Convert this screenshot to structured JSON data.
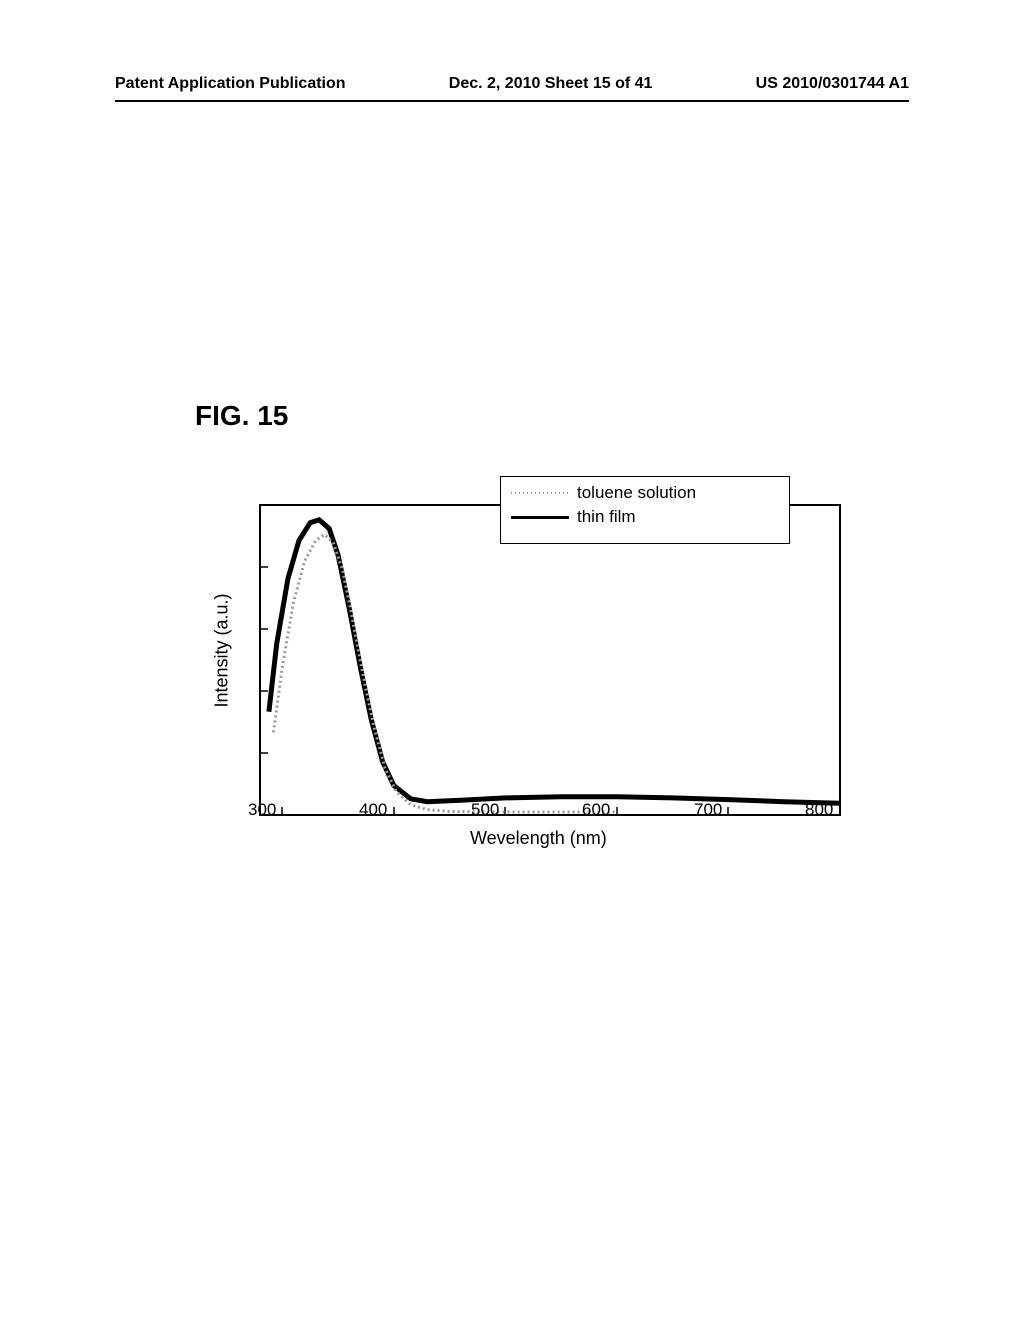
{
  "header": {
    "left": "Patent Application Publication",
    "center": "Dec. 2, 2010  Sheet 15 of 41",
    "right": "US 2010/0301744 A1"
  },
  "figure": {
    "label": "FIG. 15"
  },
  "chart": {
    "type": "line",
    "xlabel": "Wevelength (nm)",
    "ylabel": "Intensity (a.u.)",
    "xlim": [
      280,
      800
    ],
    "ylim": [
      0,
      1.05
    ],
    "xticks": [
      300,
      400,
      500,
      600,
      700,
      800
    ],
    "label_fontsize": 18,
    "tick_fontsize": 17,
    "background_color": "#ffffff",
    "border_color": "#000000",
    "border_width": 2,
    "legend": {
      "position": "upper-right",
      "items": [
        {
          "label": "toluene solution",
          "color": "#999999",
          "style": "dotted",
          "line_width": 2
        },
        {
          "label": "thin film",
          "color": "#000000",
          "style": "solid",
          "line_width": 3
        }
      ]
    },
    "series": [
      {
        "name": "thin film",
        "color": "#000000",
        "line_width": 5,
        "style": "solid",
        "data": [
          {
            "x": 288,
            "y": 0.35
          },
          {
            "x": 295,
            "y": 0.58
          },
          {
            "x": 305,
            "y": 0.8
          },
          {
            "x": 315,
            "y": 0.93
          },
          {
            "x": 325,
            "y": 0.99
          },
          {
            "x": 333,
            "y": 1.0
          },
          {
            "x": 342,
            "y": 0.97
          },
          {
            "x": 350,
            "y": 0.88
          },
          {
            "x": 360,
            "y": 0.7
          },
          {
            "x": 370,
            "y": 0.5
          },
          {
            "x": 380,
            "y": 0.32
          },
          {
            "x": 390,
            "y": 0.18
          },
          {
            "x": 400,
            "y": 0.1
          },
          {
            "x": 415,
            "y": 0.055
          },
          {
            "x": 430,
            "y": 0.045
          },
          {
            "x": 460,
            "y": 0.05
          },
          {
            "x": 500,
            "y": 0.058
          },
          {
            "x": 550,
            "y": 0.062
          },
          {
            "x": 600,
            "y": 0.062
          },
          {
            "x": 650,
            "y": 0.058
          },
          {
            "x": 700,
            "y": 0.052
          },
          {
            "x": 750,
            "y": 0.045
          },
          {
            "x": 800,
            "y": 0.04
          }
        ]
      },
      {
        "name": "toluene solution",
        "color": "#999999",
        "line_width": 3,
        "style": "dotted",
        "data": [
          {
            "x": 292,
            "y": 0.28
          },
          {
            "x": 300,
            "y": 0.5
          },
          {
            "x": 310,
            "y": 0.72
          },
          {
            "x": 320,
            "y": 0.86
          },
          {
            "x": 330,
            "y": 0.93
          },
          {
            "x": 338,
            "y": 0.95
          },
          {
            "x": 346,
            "y": 0.92
          },
          {
            "x": 354,
            "y": 0.83
          },
          {
            "x": 362,
            "y": 0.68
          },
          {
            "x": 372,
            "y": 0.48
          },
          {
            "x": 382,
            "y": 0.3
          },
          {
            "x": 392,
            "y": 0.16
          },
          {
            "x": 402,
            "y": 0.08
          },
          {
            "x": 415,
            "y": 0.035
          },
          {
            "x": 430,
            "y": 0.018
          },
          {
            "x": 450,
            "y": 0.012
          },
          {
            "x": 500,
            "y": 0.01
          },
          {
            "x": 600,
            "y": 0.01
          }
        ]
      }
    ]
  }
}
